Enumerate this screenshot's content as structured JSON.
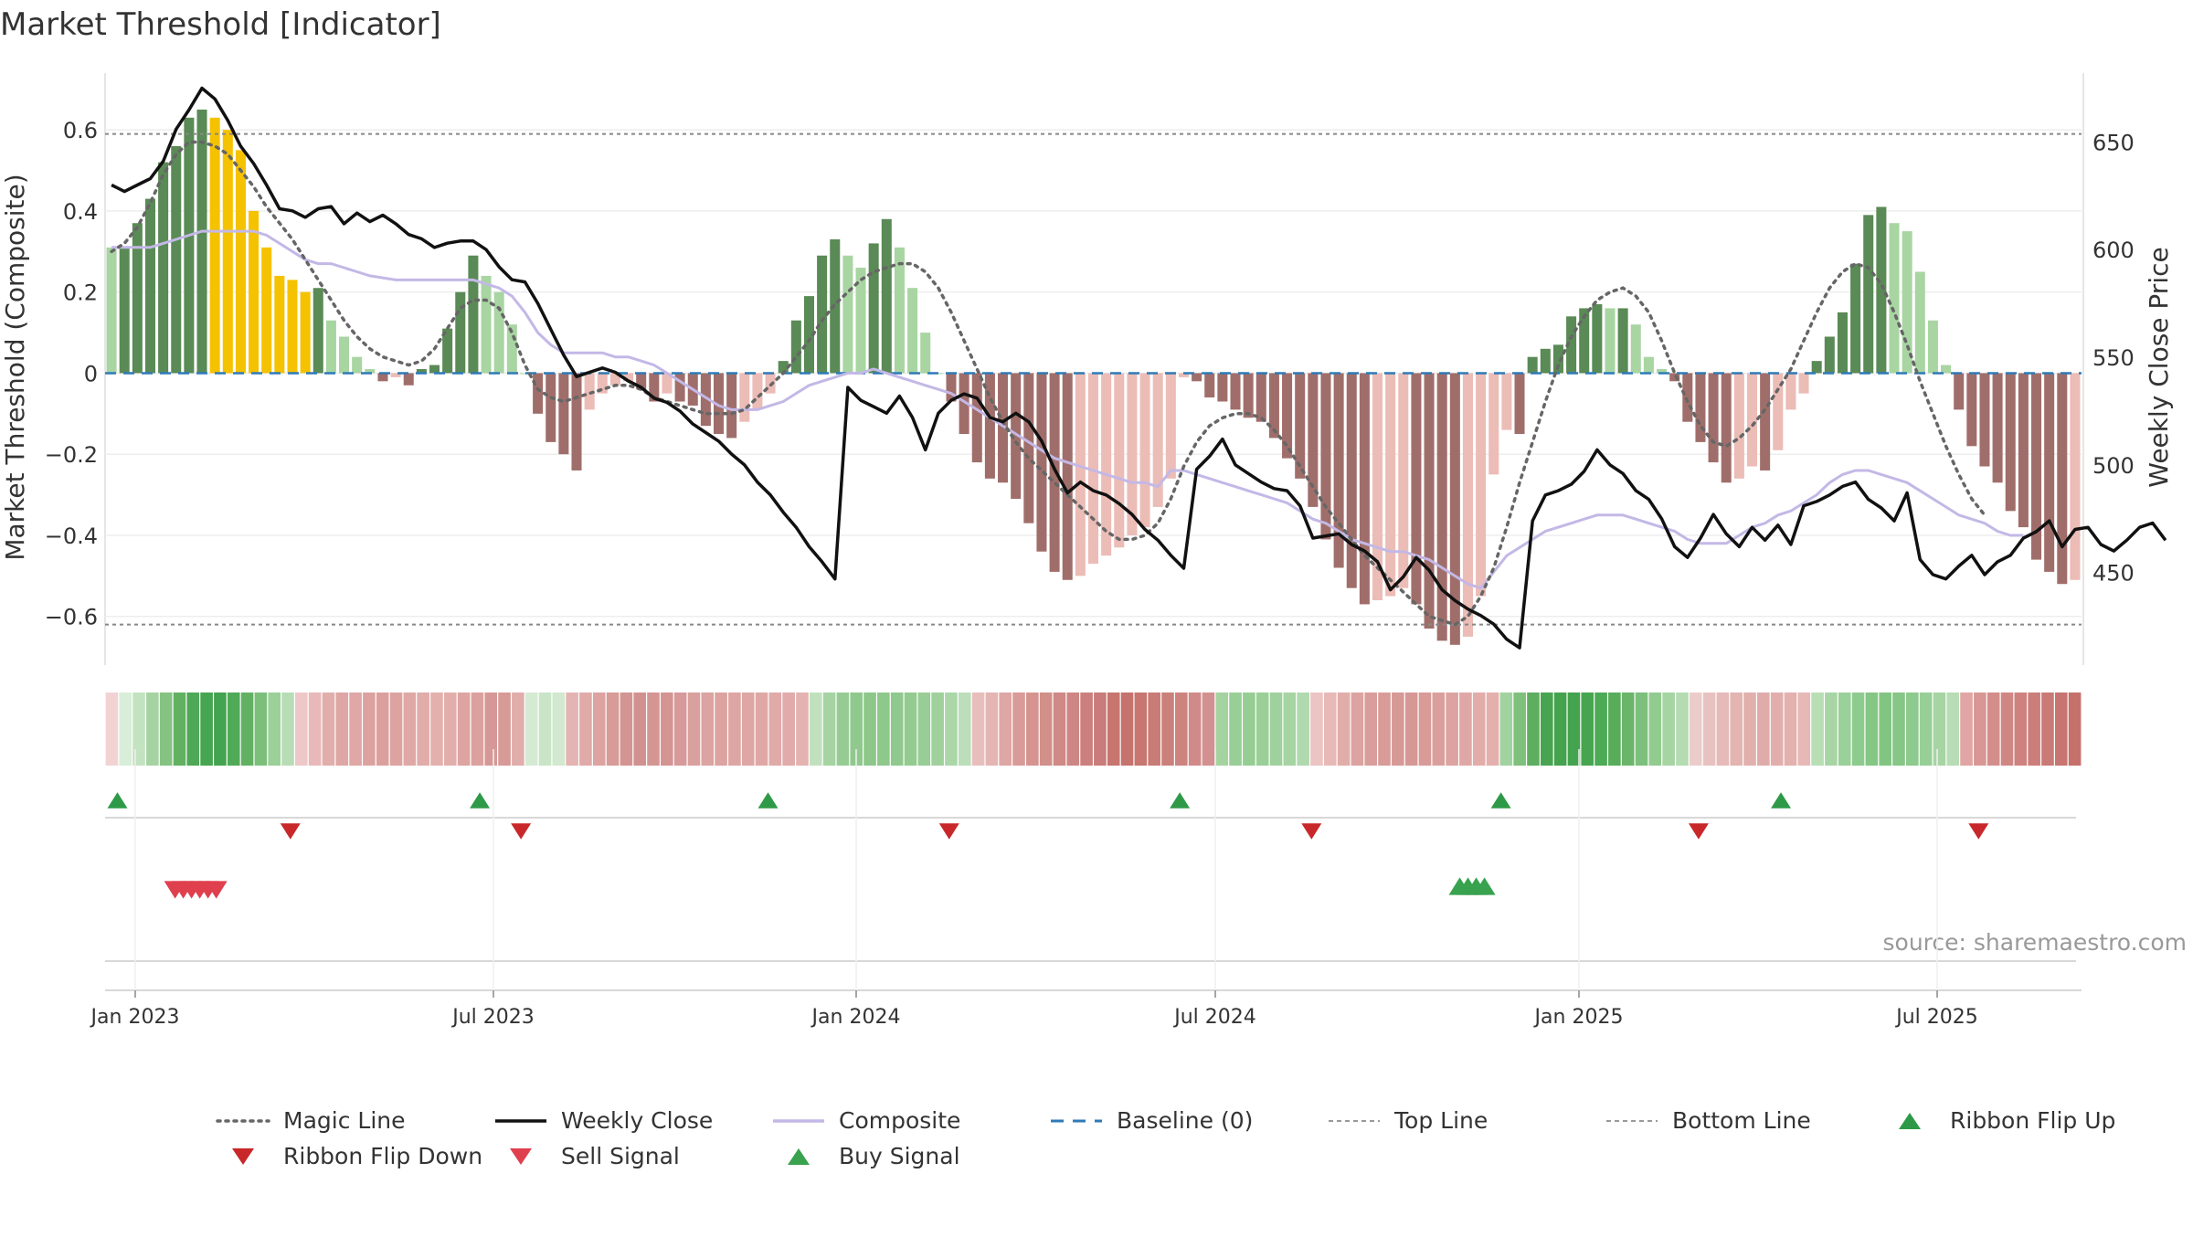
{
  "chart_data": {
    "type": "bar",
    "title": "Market Threshold [Indicator]",
    "ylabel": "Market Threshold (Composite)",
    "y2label": "Weekly Close Price",
    "ylim": [
      -0.72,
      0.74
    ],
    "y2lim": [
      407,
      682
    ],
    "yticks": [
      "0.6",
      "0.4",
      "0.2",
      "0",
      "-0.2",
      "-0.4",
      "-0.6"
    ],
    "y2ticks": [
      "650",
      "600",
      "550",
      "500",
      "450"
    ],
    "xticks": [
      "Jan 2023",
      "Jul 2023",
      "Jan 2024",
      "Jul 2024",
      "Jan 2025",
      "Jul 2025"
    ],
    "top_line": 0.59,
    "bottom_line": -0.62,
    "source": "source: sharemaestro.com",
    "colors": {
      "pos_dark": "#5a8a55",
      "pos_light": "#a8d5a2",
      "neg_dark": "#a06e6a",
      "neg_light": "#ecbcb6",
      "extreme": "#f5c200",
      "close": "#111111",
      "composite": "#c3b8e6",
      "magic": "#666666",
      "baseline": "#2e7ab8",
      "flip_up": "#2e9a48",
      "flip_down": "#c8282a",
      "sell": "#e0404e",
      "buy": "#38a24e"
    },
    "legend": [
      {
        "label": "Magic Line",
        "kind": "dotted",
        "color": "#666666"
      },
      {
        "label": "Weekly Close",
        "kind": "solid",
        "color": "#111111"
      },
      {
        "label": "Composite",
        "kind": "solid",
        "color": "#c3b8e6"
      },
      {
        "label": "Baseline (0)",
        "kind": "dashed",
        "color": "#2e7ab8"
      },
      {
        "label": "Top Line",
        "kind": "thin-dash",
        "color": "#999999"
      },
      {
        "label": "Bottom Line",
        "kind": "thin-dash",
        "color": "#999999"
      },
      {
        "label": "Ribbon Flip Up",
        "kind": "tri-up",
        "color": "#2e9a48"
      },
      {
        "label": "Ribbon Flip Down",
        "kind": "tri-down",
        "color": "#c8282a"
      },
      {
        "label": "Sell Signal",
        "kind": "tri-down",
        "color": "#e0404e"
      },
      {
        "label": "Buy Signal",
        "kind": "tri-up",
        "color": "#38a24e"
      }
    ],
    "bars": [
      0.31,
      0.31,
      0.37,
      0.43,
      0.52,
      0.56,
      0.63,
      0.65,
      0.63,
      0.6,
      0.55,
      0.4,
      0.31,
      0.24,
      0.23,
      0.2,
      0.21,
      0.13,
      0.09,
      0.04,
      0.01,
      -0.02,
      -0.01,
      -0.03,
      0.01,
      0.02,
      0.11,
      0.2,
      0.29,
      0.24,
      0.2,
      0.12,
      0.0,
      -0.1,
      -0.17,
      -0.2,
      -0.24,
      -0.09,
      -0.05,
      -0.03,
      -0.02,
      -0.04,
      -0.07,
      -0.05,
      -0.07,
      -0.08,
      -0.13,
      -0.15,
      -0.16,
      -0.12,
      -0.09,
      -0.05,
      0.03,
      0.13,
      0.19,
      0.29,
      0.33,
      0.29,
      0.26,
      0.32,
      0.38,
      0.31,
      0.21,
      0.1,
      0.0,
      -0.07,
      -0.15,
      -0.22,
      -0.26,
      -0.27,
      -0.31,
      -0.37,
      -0.44,
      -0.49,
      -0.51,
      -0.5,
      -0.47,
      -0.45,
      -0.43,
      -0.4,
      -0.38,
      -0.33,
      -0.26,
      -0.01,
      -0.02,
      -0.06,
      -0.07,
      -0.09,
      -0.11,
      -0.12,
      -0.16,
      -0.21,
      -0.26,
      -0.33,
      -0.41,
      -0.48,
      -0.53,
      -0.57,
      -0.56,
      -0.55,
      -0.53,
      -0.57,
      -0.63,
      -0.66,
      -0.67,
      -0.65,
      -0.55,
      -0.25,
      -0.14,
      -0.15,
      0.04,
      0.06,
      0.07,
      0.14,
      0.16,
      0.17,
      0.16,
      0.16,
      0.12,
      0.04,
      0.01,
      -0.02,
      -0.12,
      -0.17,
      -0.22,
      -0.27,
      -0.26,
      -0.23,
      -0.24,
      -0.19,
      -0.09,
      -0.05,
      0.03,
      0.09,
      0.15,
      0.27,
      0.39,
      0.41,
      0.37,
      0.35,
      0.25,
      0.13,
      0.02,
      -0.09,
      -0.18,
      -0.23,
      -0.27,
      -0.34,
      -0.38,
      -0.46,
      -0.49,
      -0.52,
      -0.51
    ],
    "extreme_ranges": [
      [
        8,
        15
      ],
      [
        165,
        171
      ]
    ],
    "close": [
      630,
      627,
      630,
      633,
      641,
      656,
      665,
      675,
      670,
      660,
      648,
      640,
      630,
      619,
      618,
      615,
      619,
      620,
      612,
      617,
      613,
      616,
      612,
      607,
      605,
      601,
      603,
      604,
      604,
      600,
      592,
      586,
      585,
      575,
      563,
      551,
      541,
      543,
      545,
      543,
      539,
      536,
      531,
      529,
      525,
      519,
      515,
      511,
      505,
      500,
      492,
      486,
      478,
      471,
      462,
      455,
      447,
      536,
      530,
      527,
      524,
      532,
      522,
      507,
      524,
      530,
      533,
      531,
      522,
      520,
      524,
      520,
      511,
      498,
      487,
      492,
      488,
      486,
      482,
      477,
      470,
      465,
      458,
      452,
      498,
      504,
      512,
      500,
      496,
      492,
      489,
      488,
      481,
      466,
      467,
      468,
      463,
      460,
      455,
      442,
      448,
      457,
      451,
      442,
      437,
      433,
      430,
      426,
      419,
      415,
      474,
      486,
      488,
      491,
      497,
      507,
      500,
      496,
      488,
      484,
      475,
      462,
      457,
      466,
      477,
      468,
      462,
      471,
      465,
      472,
      463,
      481,
      483,
      486,
      490,
      492,
      484,
      480,
      474,
      487,
      456,
      449,
      447,
      453,
      458,
      449,
      455,
      458,
      466,
      469,
      474,
      462,
      470,
      471,
      463,
      460,
      465,
      471,
      473,
      465
    ],
    "composite_line": [
      0.31,
      0.31,
      0.31,
      0.31,
      0.32,
      0.33,
      0.34,
      0.35,
      0.35,
      0.35,
      0.35,
      0.35,
      0.34,
      0.32,
      0.3,
      0.28,
      0.27,
      0.27,
      0.26,
      0.25,
      0.24,
      0.235,
      0.23,
      0.23,
      0.23,
      0.23,
      0.23,
      0.23,
      0.23,
      0.22,
      0.21,
      0.19,
      0.15,
      0.1,
      0.07,
      0.05,
      0.05,
      0.05,
      0.05,
      0.04,
      0.04,
      0.03,
      0.02,
      0.0,
      -0.02,
      -0.04,
      -0.06,
      -0.08,
      -0.09,
      -0.09,
      -0.09,
      -0.08,
      -0.07,
      -0.05,
      -0.03,
      -0.02,
      -0.01,
      0.0,
      0.0,
      0.01,
      0.0,
      -0.01,
      -0.02,
      -0.03,
      -0.04,
      -0.05,
      -0.07,
      -0.09,
      -0.11,
      -0.13,
      -0.15,
      -0.17,
      -0.19,
      -0.21,
      -0.22,
      -0.23,
      -0.24,
      -0.25,
      -0.26,
      -0.27,
      -0.27,
      -0.28,
      -0.24,
      -0.24,
      -0.25,
      -0.26,
      -0.27,
      -0.28,
      -0.29,
      -0.3,
      -0.31,
      -0.32,
      -0.34,
      -0.36,
      -0.37,
      -0.39,
      -0.41,
      -0.42,
      -0.43,
      -0.44,
      -0.44,
      -0.45,
      -0.46,
      -0.48,
      -0.5,
      -0.52,
      -0.53,
      -0.49,
      -0.45,
      -0.43,
      -0.41,
      -0.39,
      -0.38,
      -0.37,
      -0.36,
      -0.35,
      -0.35,
      -0.35,
      -0.36,
      -0.37,
      -0.38,
      -0.39,
      -0.41,
      -0.42,
      -0.42,
      -0.42,
      -0.4,
      -0.38,
      -0.37,
      -0.35,
      -0.34,
      -0.32,
      -0.3,
      -0.27,
      -0.25,
      -0.24,
      -0.24,
      -0.25,
      -0.26,
      -0.27,
      -0.29,
      -0.31,
      -0.33,
      -0.35,
      -0.36,
      -0.37,
      -0.39,
      -0.4,
      -0.4
    ],
    "magic_line": [
      0.3,
      0.32,
      0.36,
      0.42,
      0.49,
      0.54,
      0.57,
      0.57,
      0.56,
      0.54,
      0.5,
      0.46,
      0.41,
      0.37,
      0.33,
      0.28,
      0.23,
      0.18,
      0.13,
      0.09,
      0.06,
      0.04,
      0.03,
      0.02,
      0.03,
      0.06,
      0.11,
      0.16,
      0.18,
      0.18,
      0.16,
      0.1,
      0.02,
      -0.04,
      -0.06,
      -0.07,
      -0.06,
      -0.05,
      -0.04,
      -0.03,
      -0.03,
      -0.04,
      -0.06,
      -0.07,
      -0.08,
      -0.09,
      -0.1,
      -0.1,
      -0.1,
      -0.09,
      -0.06,
      -0.03,
      0.0,
      0.04,
      0.08,
      0.13,
      0.17,
      0.2,
      0.23,
      0.25,
      0.26,
      0.27,
      0.27,
      0.25,
      0.21,
      0.15,
      0.08,
      0.01,
      -0.06,
      -0.12,
      -0.17,
      -0.21,
      -0.24,
      -0.27,
      -0.3,
      -0.33,
      -0.36,
      -0.39,
      -0.41,
      -0.41,
      -0.4,
      -0.37,
      -0.31,
      -0.23,
      -0.17,
      -0.13,
      -0.11,
      -0.1,
      -0.1,
      -0.11,
      -0.14,
      -0.18,
      -0.23,
      -0.28,
      -0.33,
      -0.37,
      -0.41,
      -0.45,
      -0.48,
      -0.51,
      -0.54,
      -0.57,
      -0.6,
      -0.61,
      -0.62,
      -0.6,
      -0.55,
      -0.48,
      -0.38,
      -0.27,
      -0.17,
      -0.07,
      0.02,
      0.09,
      0.14,
      0.18,
      0.2,
      0.21,
      0.19,
      0.15,
      0.08,
      0.0,
      -0.07,
      -0.13,
      -0.17,
      -0.18,
      -0.16,
      -0.13,
      -0.09,
      -0.04,
      0.01,
      0.08,
      0.15,
      0.21,
      0.25,
      0.27,
      0.26,
      0.22,
      0.15,
      0.07,
      -0.02,
      -0.1,
      -0.18,
      -0.25,
      -0.31,
      -0.35
    ]
  },
  "ribbon_colors": [
    "#f2d3d3",
    "#d9eed8",
    "#c3e3c0",
    "#a6d3a2",
    "#86c383",
    "#62b161",
    "#4ea856",
    "#46a550",
    "#44a34e",
    "#4fa957",
    "#62b162",
    "#7cbf7b",
    "#9bd099",
    "#b8ddb6",
    "#eec8c8",
    "#e7b9b8",
    "#e2aeac",
    "#dea6a4",
    "#dfa7a5",
    "#dca2a0",
    "#dba09e",
    "#dca3a1",
    "#dfa8a6",
    "#e1aca9",
    "#e3b0ae",
    "#e2aeab",
    "#dda4a2",
    "#dba19e",
    "#d69896",
    "#d79a97",
    "#e0adaa",
    "#d5ead3",
    "#c9e4c6",
    "#d2e8cf",
    "#e3b4b2",
    "#e0aaa8",
    "#dca3a1",
    "#d79b98",
    "#d49592",
    "#d19190",
    "#d49593",
    "#d49492",
    "#d7999a",
    "#d9a09d",
    "#dba3a1",
    "#dca3a1",
    "#dda5a3",
    "#dea6a4",
    "#dfa8a6",
    "#e0aaa8",
    "#e0abaa",
    "#e4b3b1",
    "#c1e1be",
    "#a5d4a2",
    "#96cc93",
    "#90c98d",
    "#8dc78a",
    "#8ec88b",
    "#90c98d",
    "#93cb90",
    "#98cd95",
    "#a0d19d",
    "#abd7a8",
    "#bcdeba",
    "#e8bebd",
    "#e4b5b3",
    "#dea6a4",
    "#d89b99",
    "#d5948f",
    "#d19089",
    "#cf8986",
    "#cd8683",
    "#cb807d",
    "#c97c79",
    "#c7756f",
    "#c6736d",
    "#c77670",
    "#c97b76",
    "#cb807b",
    "#cd847f",
    "#d08b88",
    "#d39090",
    "#a4d3a0",
    "#99ce96",
    "#96cd93",
    "#9acf97",
    "#9fd19c",
    "#a6d4a3",
    "#b1d9ae",
    "#ecc4c3",
    "#e6b9b7",
    "#e1ada9",
    "#dca3a0",
    "#d99e9b",
    "#d89b98",
    "#d79996",
    "#d69895",
    "#d89b98",
    "#da9f9c",
    "#dca3a0",
    "#dfa8a6",
    "#e2ada9",
    "#e3b0ad",
    "#a2d29f",
    "#7fc07c",
    "#5eae5f",
    "#48a451",
    "#45a24d",
    "#44a34e",
    "#47a550",
    "#4daa55",
    "#58ad5a",
    "#6ab56a",
    "#7dbf7c",
    "#92cb8f",
    "#a6d4a3",
    "#b5dbb2",
    "#eccccb",
    "#e8c2c0",
    "#e5bab8",
    "#e3b4b2",
    "#e1b0ad",
    "#e0acaa",
    "#e1aeac",
    "#e3b1ae",
    "#e6b9b6",
    "#b9deb6",
    "#a7d6a4",
    "#9ad09a",
    "#8ecb8e",
    "#85c685",
    "#82c582",
    "#86c686",
    "#8dca8d",
    "#98cf97",
    "#a6d5a3",
    "#b8dcb5",
    "#e0a5a4",
    "#d89794",
    "#d38e8b",
    "#d08784",
    "#ce8280",
    "#cc7e7b",
    "#ca7a76",
    "#c87470",
    "#c6706b"
  ],
  "signals": {
    "flip_up": [
      1,
      45,
      80,
      130,
      169,
      203
    ],
    "flip_down": [
      22,
      50,
      102,
      146,
      193,
      227
    ],
    "sell": [
      8,
      9,
      10,
      11,
      12,
      13
    ],
    "buy": [
      164,
      165,
      166,
      167
    ]
  }
}
